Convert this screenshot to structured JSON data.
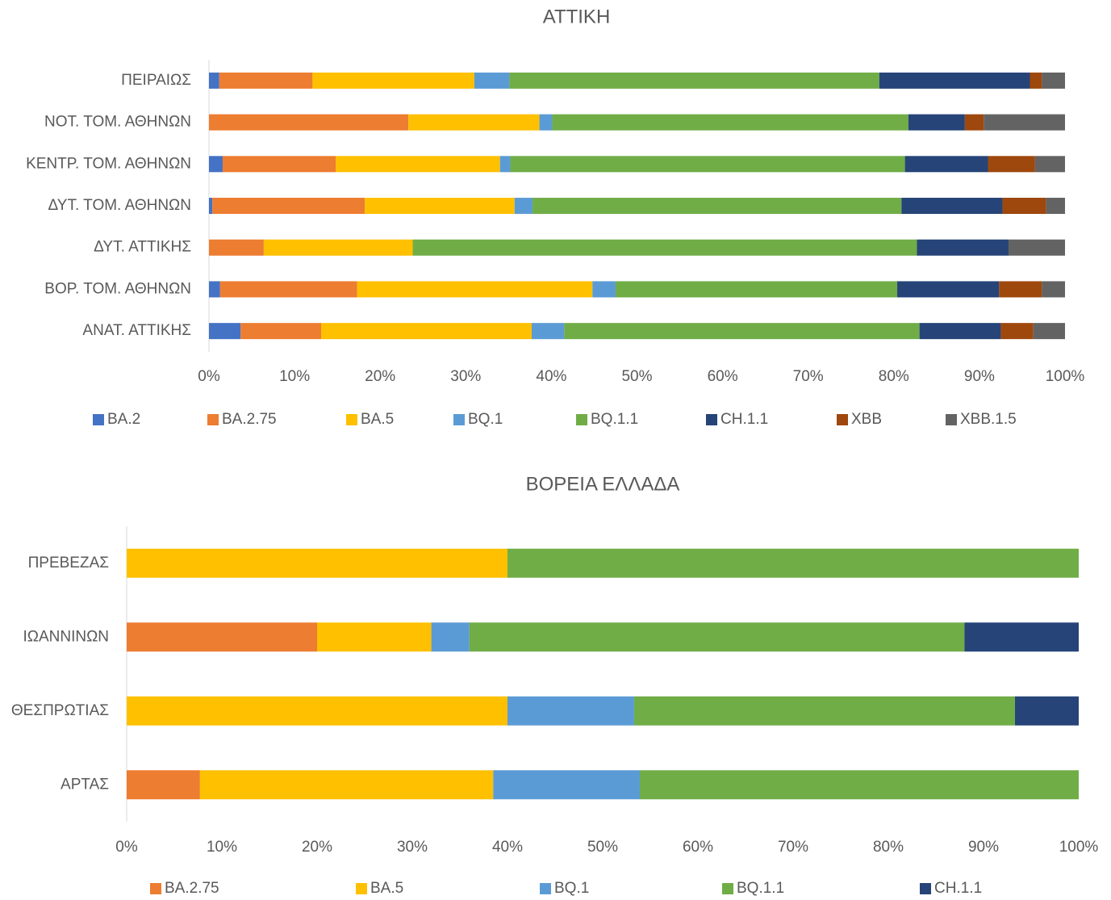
{
  "chart_data": [
    {
      "type": "stacked_bar_horizontal",
      "title": "ΑΤΤΙΚΗ",
      "categories": [
        "ΠΕΙΡΑΙΩΣ",
        "ΝΟΤ. ΤΟΜ. ΑΘΗΝΩΝ",
        "ΚΕΝΤΡ. ΤΟΜ. ΑΘΗΝΩΝ",
        "ΔΥΤ. ΤΟΜ. ΑΘΗΝΩΝ",
        "ΔΥΤ. ΑΤΤΙΚΗΣ",
        "ΒΟΡ. ΤΟΜ. ΑΘΗΝΩΝ",
        "ΑΝΑΤ. ΑΤΤΙΚΗΣ"
      ],
      "series": [
        {
          "name": "BA.2",
          "color": "#4472c4",
          "values": [
            1.2,
            0,
            1.6,
            0.4,
            0,
            1.3,
            3.7
          ]
        },
        {
          "name": "BA.2.75",
          "color": "#ed7d31",
          "values": [
            10.9,
            23.3,
            13.2,
            17.8,
            6.4,
            16.0,
            9.4
          ]
        },
        {
          "name": "BA.5",
          "color": "#ffc000",
          "values": [
            18.9,
            15.3,
            19.2,
            17.5,
            17.4,
            27.5,
            24.6
          ]
        },
        {
          "name": "BQ.1",
          "color": "#5b9bd5",
          "values": [
            4.1,
            1.5,
            1.2,
            2.1,
            0,
            2.7,
            3.8
          ]
        },
        {
          "name": "BQ.1.1",
          "color": "#70ad47",
          "values": [
            43.2,
            41.6,
            46.1,
            43.1,
            58.9,
            32.9,
            41.5
          ]
        },
        {
          "name": "CH.1.1",
          "color": "#264478",
          "values": [
            17.6,
            6.6,
            9.7,
            11.8,
            10.7,
            11.9,
            9.5
          ]
        },
        {
          "name": "XBB",
          "color": "#9e480e",
          "values": [
            1.4,
            2.2,
            5.5,
            5.1,
            0,
            5.0,
            3.8
          ]
        },
        {
          "name": "XBB.1.5",
          "color": "#636363",
          "values": [
            2.7,
            9.5,
            3.5,
            2.2,
            6.6,
            2.7,
            3.7
          ]
        }
      ],
      "xlim": [
        0,
        100
      ],
      "xticks": [
        {
          "value": 0,
          "label": "0%"
        },
        {
          "value": 10,
          "label": "10%"
        },
        {
          "value": 20,
          "label": "20%"
        },
        {
          "value": 30,
          "label": "30%"
        },
        {
          "value": 40,
          "label": "40%"
        },
        {
          "value": 50,
          "label": "50%"
        },
        {
          "value": 60,
          "label": "60%"
        },
        {
          "value": 70,
          "label": "70%"
        },
        {
          "value": 80,
          "label": "80%"
        },
        {
          "value": 90,
          "label": "90%"
        },
        {
          "value": 100,
          "label": "100%"
        }
      ],
      "legend": "bottom"
    },
    {
      "type": "stacked_bar_horizontal",
      "title": "ΒΟΡΕΙΑ ΕΛΛΑΔΑ",
      "categories": [
        "ΠΡΕΒΕΖΑΣ",
        "ΙΩΑΝΝΙΝΩΝ",
        "ΘΕΣΠΡΩΤΙΑΣ",
        "ΑΡΤΑΣ"
      ],
      "series": [
        {
          "name": "BA.2.75",
          "color": "#ed7d31",
          "values": [
            0,
            20,
            0,
            7.7
          ]
        },
        {
          "name": "BA.5",
          "color": "#ffc000",
          "values": [
            40,
            12,
            40,
            30.8
          ]
        },
        {
          "name": "BQ.1",
          "color": "#5b9bd5",
          "values": [
            0,
            4,
            13.3,
            15.4
          ]
        },
        {
          "name": "BQ.1.1",
          "color": "#70ad47",
          "values": [
            60,
            52,
            40,
            46.1
          ]
        },
        {
          "name": "CH.1.1",
          "color": "#264478",
          "values": [
            0,
            12,
            6.7,
            0
          ]
        }
      ],
      "xlim": [
        0,
        100
      ],
      "xticks": [
        {
          "value": 0,
          "label": "0%"
        },
        {
          "value": 10,
          "label": "10%"
        },
        {
          "value": 20,
          "label": "20%"
        },
        {
          "value": 30,
          "label": "30%"
        },
        {
          "value": 40,
          "label": "40%"
        },
        {
          "value": 50,
          "label": "50%"
        },
        {
          "value": 60,
          "label": "60%"
        },
        {
          "value": 70,
          "label": "70%"
        },
        {
          "value": 80,
          "label": "80%"
        },
        {
          "value": 90,
          "label": "90%"
        },
        {
          "value": 100,
          "label": "100%"
        }
      ],
      "legend": "bottom"
    }
  ]
}
